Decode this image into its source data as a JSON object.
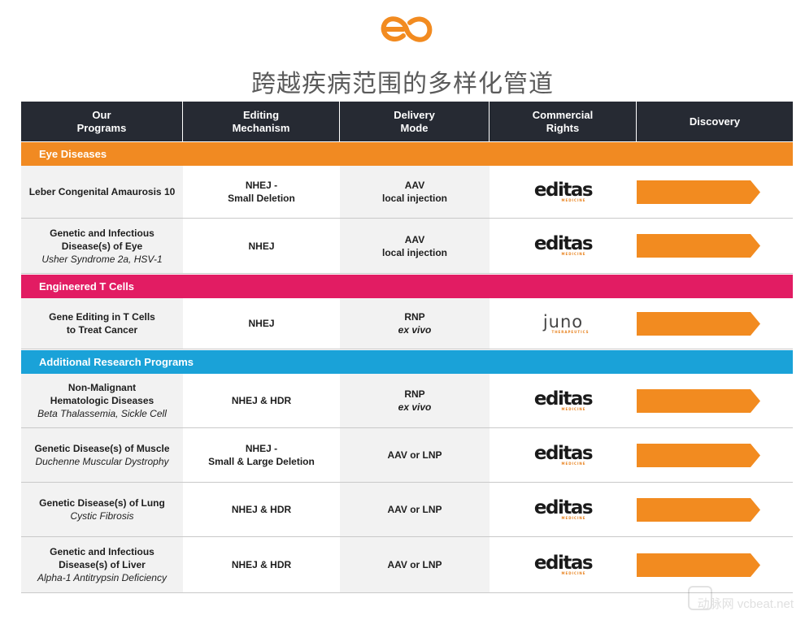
{
  "title": "跨越疾病范围的多样化管道",
  "colors": {
    "header_bg": "#262a33",
    "eye": "#f18a22",
    "tcell": "#e21c63",
    "research": "#1aa2d8",
    "arrow": "#f28b20"
  },
  "columns": [
    "Our\nPrograms",
    "Editing\nMechanism",
    "Delivery\nMode",
    "Commercial\nRights",
    "Discovery"
  ],
  "sections": [
    {
      "name": "Eye Diseases",
      "color": "#f18a22",
      "rows": [
        {
          "program": "Leber Congenital Amaurosis 10",
          "sub": "",
          "mechanism": "NHEJ -\nSmall Deletion",
          "delivery": "AAV",
          "delivery2": "local injection",
          "delivery2_italic": false,
          "rights": "editas",
          "discovery": 1.0
        },
        {
          "program": "Genetic and Infectious\nDisease(s) of Eye",
          "sub": "Usher Syndrome 2a, HSV-1",
          "mechanism": "NHEJ",
          "delivery": "AAV",
          "delivery2": "local injection",
          "delivery2_italic": false,
          "rights": "editas",
          "discovery": 1.0
        }
      ]
    },
    {
      "name": "Engineered T Cells",
      "color": "#e21c63",
      "rows": [
        {
          "program": "Gene Editing in T Cells\nto Treat Cancer",
          "sub": "",
          "mechanism": "NHEJ",
          "delivery": "RNP",
          "delivery2": "ex vivo",
          "delivery2_italic": true,
          "rights": "juno",
          "discovery": 1.0
        }
      ]
    },
    {
      "name": "Additional Research Programs",
      "color": "#1aa2d8",
      "rows": [
        {
          "program": "Non-Malignant\nHematologic Diseases",
          "sub": "Beta Thalassemia, Sickle Cell",
          "mechanism": "NHEJ & HDR",
          "delivery": "RNP",
          "delivery2": "ex vivo",
          "delivery2_italic": true,
          "rights": "editas",
          "discovery": 1.0
        },
        {
          "program": "Genetic Disease(s) of Muscle",
          "sub": "Duchenne Muscular Dystrophy",
          "mechanism": "NHEJ -\nSmall  & Large Deletion",
          "delivery": "AAV or LNP",
          "delivery2": "",
          "delivery2_italic": false,
          "rights": "editas",
          "discovery": 1.0
        },
        {
          "program": "Genetic Disease(s) of Lung",
          "sub": "Cystic Fibrosis",
          "mechanism": "NHEJ & HDR",
          "delivery": "AAV or LNP",
          "delivery2": "",
          "delivery2_italic": false,
          "rights": "editas",
          "discovery": 1.0
        },
        {
          "program": "Genetic and Infectious\nDisease(s) of Liver",
          "sub": "Alpha-1 Antitrypsin Deficiency",
          "mechanism": "NHEJ & HDR",
          "delivery": "AAV or LNP",
          "delivery2": "",
          "delivery2_italic": false,
          "rights": "editas",
          "discovery": 1.0
        }
      ]
    }
  ],
  "partners": {
    "editas": {
      "name": "editas",
      "tagline": "MEDICINE"
    },
    "juno": {
      "name": "juno",
      "tagline": "THERAPEUTICS"
    }
  },
  "watermark": {
    "site": "vcbeat.net",
    "brand": "动脉网"
  }
}
